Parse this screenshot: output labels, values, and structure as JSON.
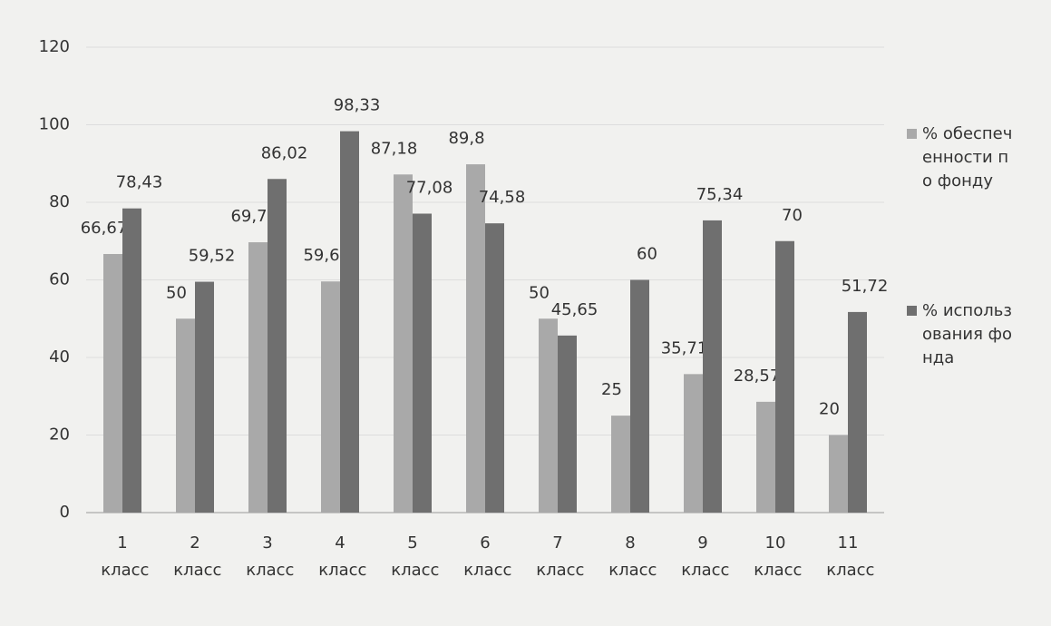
{
  "chart_data": {
    "type": "bar",
    "categories": [
      "1 класс",
      "2 класс",
      "3 класс",
      "4 класс",
      "5 класс",
      "6 класс",
      "7 класс",
      "8 класс",
      "9 класс",
      "10 класс",
      "11 класс"
    ],
    "series": [
      {
        "name": "% обеспеченности по фонду",
        "color": "#a9a9a9",
        "values": [
          66.67,
          50,
          69.7,
          59.6,
          87.18,
          89.8,
          50,
          25,
          35.71,
          28.57,
          20
        ],
        "value_labels": [
          "66,67",
          "50",
          "69,7",
          "59,6",
          "87,18",
          "89,8",
          "50",
          "25",
          "35,71",
          "28,57",
          "20"
        ]
      },
      {
        "name": "% использования фонда",
        "color": "#6f6f6f",
        "values": [
          78.43,
          59.52,
          86.02,
          98.33,
          77.08,
          74.58,
          45.65,
          60,
          75.34,
          70,
          51.72
        ],
        "value_labels": [
          "78,43",
          "59,52",
          "86,02",
          "98,33",
          "77,08",
          "74,58",
          "45,65",
          "60",
          "75,34",
          "70",
          "51,72"
        ]
      }
    ],
    "ylim": [
      0,
      120
    ],
    "yticks": [
      0,
      20,
      40,
      60,
      80,
      100,
      120
    ],
    "grid": true,
    "legend": "right"
  }
}
